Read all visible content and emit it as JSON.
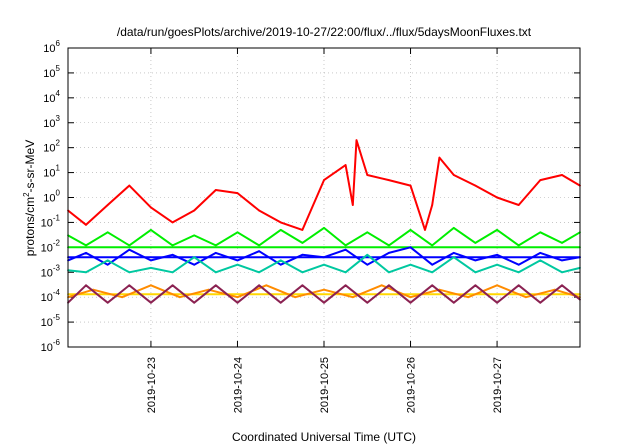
{
  "chart_data": {
    "type": "line",
    "title": "/data/run/goesPlots/archive/2019-10-27/22:00/flux/../flux/5daysMoonFluxes.txt",
    "xlabel": "Coordinated Universal Time (UTC)",
    "ylabel": "protons/cm²-s-sr-MeV",
    "ylabel_parts": {
      "pre": "protons/cm",
      "sup": "2",
      "post": "-s-sr-MeV"
    },
    "yscale": "log",
    "ylim": [
      1e-06,
      1000000.0
    ],
    "xlim": [
      "2019-10-22T01:00",
      "2019-10-27T23:00"
    ],
    "grid": true,
    "x_ticks": [
      "2019-10-23",
      "2019-10-24",
      "2019-10-25",
      "2019-10-26",
      "2019-10-27"
    ],
    "y_ticks": [
      {
        "base": "10",
        "exp": "6"
      },
      {
        "base": "10",
        "exp": "5"
      },
      {
        "base": "10",
        "exp": "4"
      },
      {
        "base": "10",
        "exp": "3"
      },
      {
        "base": "10",
        "exp": "2"
      },
      {
        "base": "10",
        "exp": "1"
      },
      {
        "base": "10",
        "exp": "0"
      },
      {
        "base": "10",
        "exp": "-1"
      },
      {
        "base": "10",
        "exp": "-2"
      },
      {
        "base": "10",
        "exp": "-3"
      },
      {
        "base": "10",
        "exp": "-4"
      },
      {
        "base": "10",
        "exp": "-5"
      },
      {
        "base": "10",
        "exp": "-6"
      }
    ],
    "series": [
      {
        "color": "#ff0000",
        "x": [
          "2019-10-22T01:00",
          "2019-10-22T06:00",
          "2019-10-22T12:00",
          "2019-10-22T18:00",
          "2019-10-23T00:00",
          "2019-10-23T06:00",
          "2019-10-23T12:00",
          "2019-10-23T18:00",
          "2019-10-24T00:00",
          "2019-10-24T06:00",
          "2019-10-24T12:00",
          "2019-10-24T18:00",
          "2019-10-25T00:00",
          "2019-10-25T06:00",
          "2019-10-25T08:00",
          "2019-10-25T09:00",
          "2019-10-25T12:00",
          "2019-10-25T18:00",
          "2019-10-26T00:00",
          "2019-10-26T04:00",
          "2019-10-26T06:00",
          "2019-10-26T08:00",
          "2019-10-26T12:00",
          "2019-10-26T18:00",
          "2019-10-27T00:00",
          "2019-10-27T06:00",
          "2019-10-27T12:00",
          "2019-10-27T18:00",
          "2019-10-27T23:00"
        ],
        "y": [
          0.3,
          0.08,
          0.5,
          3,
          0.4,
          0.1,
          0.3,
          2,
          1.5,
          0.3,
          0.1,
          0.05,
          5,
          20,
          0.5,
          200,
          8,
          5,
          3,
          0.05,
          0.5,
          40,
          8,
          3,
          1,
          0.5,
          5,
          8,
          3
        ]
      },
      {
        "color": "#00ee00",
        "x": [
          "2019-10-22T01:00",
          "2019-10-22T06:00",
          "2019-10-22T12:00",
          "2019-10-22T18:00",
          "2019-10-23T00:00",
          "2019-10-23T06:00",
          "2019-10-23T12:00",
          "2019-10-23T18:00",
          "2019-10-24T00:00",
          "2019-10-24T06:00",
          "2019-10-24T12:00",
          "2019-10-24T18:00",
          "2019-10-25T00:00",
          "2019-10-25T06:00",
          "2019-10-25T12:00",
          "2019-10-25T18:00",
          "2019-10-26T00:00",
          "2019-10-26T06:00",
          "2019-10-26T12:00",
          "2019-10-26T18:00",
          "2019-10-27T00:00",
          "2019-10-27T06:00",
          "2019-10-27T12:00",
          "2019-10-27T18:00",
          "2019-10-27T23:00"
        ],
        "y": [
          0.03,
          0.012,
          0.04,
          0.012,
          0.05,
          0.012,
          0.03,
          0.012,
          0.04,
          0.012,
          0.05,
          0.015,
          0.06,
          0.012,
          0.04,
          0.012,
          0.05,
          0.012,
          0.06,
          0.015,
          0.05,
          0.012,
          0.04,
          0.015,
          0.04
        ]
      },
      {
        "color": "#00ee00",
        "x": [
          "2019-10-22T01:00",
          "2019-10-27T23:00"
        ],
        "y": [
          0.01,
          0.01
        ]
      },
      {
        "color": "#0000ff",
        "x": [
          "2019-10-22T01:00",
          "2019-10-22T06:00",
          "2019-10-22T12:00",
          "2019-10-22T18:00",
          "2019-10-23T00:00",
          "2019-10-23T06:00",
          "2019-10-23T12:00",
          "2019-10-23T18:00",
          "2019-10-24T00:00",
          "2019-10-24T06:00",
          "2019-10-24T12:00",
          "2019-10-24T18:00",
          "2019-10-25T00:00",
          "2019-10-25T06:00",
          "2019-10-25T12:00",
          "2019-10-25T18:00",
          "2019-10-26T00:00",
          "2019-10-26T06:00",
          "2019-10-26T12:00",
          "2019-10-26T18:00",
          "2019-10-27T00:00",
          "2019-10-27T06:00",
          "2019-10-27T12:00",
          "2019-10-27T18:00",
          "2019-10-27T23:00"
        ],
        "y": [
          0.003,
          0.006,
          0.002,
          0.008,
          0.003,
          0.005,
          0.002,
          0.006,
          0.003,
          0.007,
          0.002,
          0.005,
          0.004,
          0.008,
          0.002,
          0.006,
          0.01,
          0.002,
          0.006,
          0.003,
          0.005,
          0.002,
          0.006,
          0.003,
          0.004
        ]
      },
      {
        "color": "#0000ff",
        "x": [
          "2019-10-22T01:00",
          "2019-10-27T23:00"
        ],
        "y": [
          0.004,
          0.004
        ]
      },
      {
        "color": "#00c8a0",
        "x": [
          "2019-10-22T01:00",
          "2019-10-22T06:00",
          "2019-10-22T12:00",
          "2019-10-22T18:00",
          "2019-10-23T00:00",
          "2019-10-23T06:00",
          "2019-10-23T12:00",
          "2019-10-23T18:00",
          "2019-10-24T00:00",
          "2019-10-24T06:00",
          "2019-10-24T12:00",
          "2019-10-24T18:00",
          "2019-10-25T00:00",
          "2019-10-25T06:00",
          "2019-10-25T12:00",
          "2019-10-25T18:00",
          "2019-10-26T00:00",
          "2019-10-26T06:00",
          "2019-10-26T12:00",
          "2019-10-26T18:00",
          "2019-10-27T00:00",
          "2019-10-27T06:00",
          "2019-10-27T12:00",
          "2019-10-27T18:00",
          "2019-10-27T23:00"
        ],
        "y": [
          0.0012,
          0.001,
          0.003,
          0.001,
          0.0015,
          0.001,
          0.004,
          0.001,
          0.002,
          0.001,
          0.003,
          0.001,
          0.002,
          0.001,
          0.005,
          0.001,
          0.002,
          0.001,
          0.004,
          0.001,
          0.002,
          0.001,
          0.003,
          0.001,
          0.0015
        ]
      },
      {
        "color": "#ffd700",
        "x": [
          "2019-10-22T01:00",
          "2019-10-27T23:00"
        ],
        "y": [
          0.00013,
          0.00013
        ]
      },
      {
        "color": "#ff8c00",
        "x": [
          "2019-10-22T01:00",
          "2019-10-22T08:00",
          "2019-10-22T16:00",
          "2019-10-23T00:00",
          "2019-10-23T08:00",
          "2019-10-23T16:00",
          "2019-10-24T00:00",
          "2019-10-24T08:00",
          "2019-10-24T16:00",
          "2019-10-25T00:00",
          "2019-10-25T08:00",
          "2019-10-25T16:00",
          "2019-10-26T00:00",
          "2019-10-26T08:00",
          "2019-10-26T16:00",
          "2019-10-27T00:00",
          "2019-10-27T08:00",
          "2019-10-27T16:00",
          "2019-10-27T23:00"
        ],
        "y": [
          0.0001,
          0.0002,
          0.0001,
          0.0003,
          0.0001,
          0.0002,
          0.0001,
          0.0003,
          0.0001,
          0.0002,
          0.0001,
          0.0003,
          0.0001,
          0.0002,
          0.0001,
          0.0003,
          0.0001,
          0.0002,
          0.0001
        ]
      },
      {
        "color": "#8b2252",
        "x": [
          "2019-10-22T01:00",
          "2019-10-22T06:00",
          "2019-10-22T12:00",
          "2019-10-22T18:00",
          "2019-10-23T00:00",
          "2019-10-23T06:00",
          "2019-10-23T12:00",
          "2019-10-23T18:00",
          "2019-10-24T00:00",
          "2019-10-24T06:00",
          "2019-10-24T12:00",
          "2019-10-24T18:00",
          "2019-10-25T00:00",
          "2019-10-25T06:00",
          "2019-10-25T12:00",
          "2019-10-25T18:00",
          "2019-10-26T00:00",
          "2019-10-26T06:00",
          "2019-10-26T12:00",
          "2019-10-26T18:00",
          "2019-10-27T00:00",
          "2019-10-27T06:00",
          "2019-10-27T12:00",
          "2019-10-27T18:00",
          "2019-10-27T23:00"
        ],
        "y": [
          6e-05,
          0.0003,
          6e-05,
          0.0003,
          6e-05,
          0.0003,
          6e-05,
          0.0003,
          6e-05,
          0.0003,
          6e-05,
          0.0003,
          6e-05,
          0.0003,
          6e-05,
          0.0003,
          6e-05,
          0.0003,
          6e-05,
          0.0003,
          6e-05,
          0.0003,
          6e-05,
          0.0003,
          8e-05
        ]
      }
    ]
  }
}
